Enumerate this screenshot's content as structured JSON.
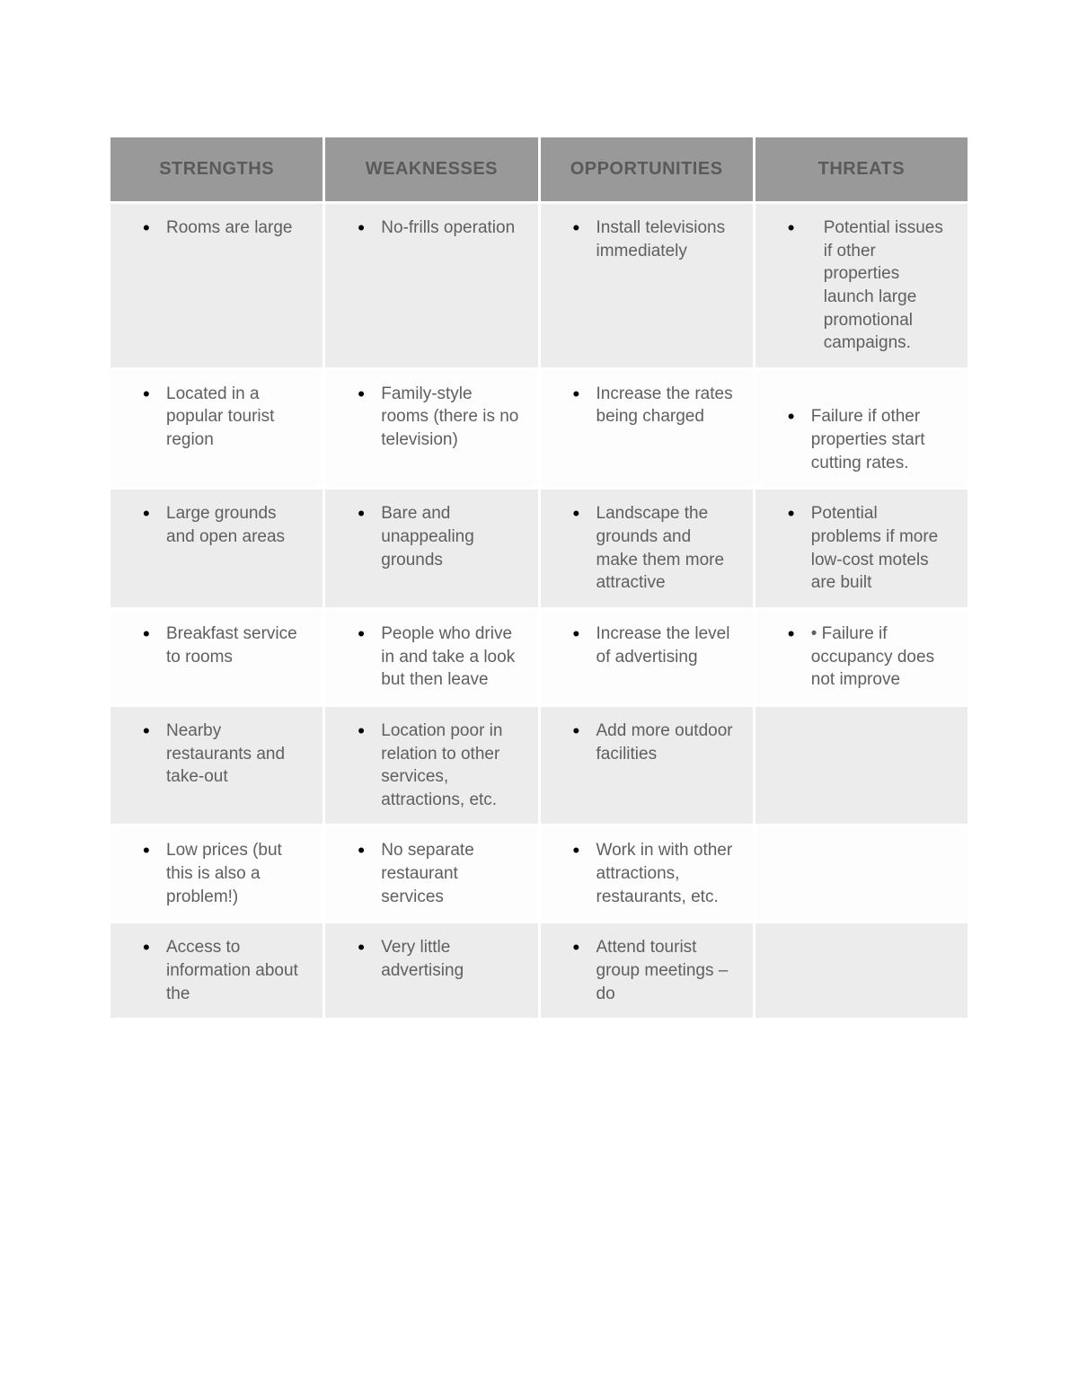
{
  "colors": {
    "page_bg": "#ffffff",
    "header_bg": "#999999",
    "header_text": "#5a5a5a",
    "row_odd_bg": "#ececec",
    "row_even_bg": "#fdfdfd",
    "cell_border": "#ffffff",
    "body_text": "#5f5f5f",
    "bullet": "#000000"
  },
  "typography": {
    "header_fontsize_pt": 15,
    "body_fontsize_pt": 14,
    "font_family": "Arial"
  },
  "layout": {
    "columns": 4,
    "rows": 7,
    "col_widths_pct": [
      25,
      25,
      25,
      25
    ]
  },
  "swot": {
    "headers": [
      "STRENGTHS",
      "WEAKNESSES",
      "OPPORTUNITIES",
      "THREATS"
    ],
    "rows": [
      {
        "strengths": "Rooms are large",
        "weaknesses": "No-frills operation",
        "opportunities": "Install televisions immediately",
        "threats": "Potential issues if other properties launch large promotional campaigns.",
        "threats_indented": true
      },
      {
        "strengths": "Located in a popular tourist region",
        "weaknesses": "Family-style rooms (there is no television)",
        "opportunities": "Increase the rates being charged",
        "threats": "Failure if other properties start cutting rates."
      },
      {
        "strengths": "Large grounds and open areas",
        "weaknesses": "Bare and unappealing grounds",
        "opportunities": "Landscape the grounds and make them more attractive",
        "threats": "Potential problems if more low-cost motels are built"
      },
      {
        "strengths": "Breakfast service to rooms",
        "weaknesses": "People who drive in and take a look but then leave",
        "opportunities": "Increase the level of advertising",
        "threats": "• Failure if occupancy does not improve"
      },
      {
        "strengths": "Nearby restaurants and take-out",
        "weaknesses": "Location poor in relation to other services, attractions, etc.",
        "opportunities": "Add more outdoor facilities",
        "threats": ""
      },
      {
        "strengths": "Low prices (but this is also a problem!)",
        "weaknesses": "No separate restaurant services",
        "opportunities": "Work in with other attractions, restaurants, etc.",
        "threats": ""
      },
      {
        "strengths": "Access to information about the",
        "weaknesses": "Very little advertising",
        "opportunities": "Attend tourist group meetings – do",
        "threats": ""
      }
    ]
  }
}
